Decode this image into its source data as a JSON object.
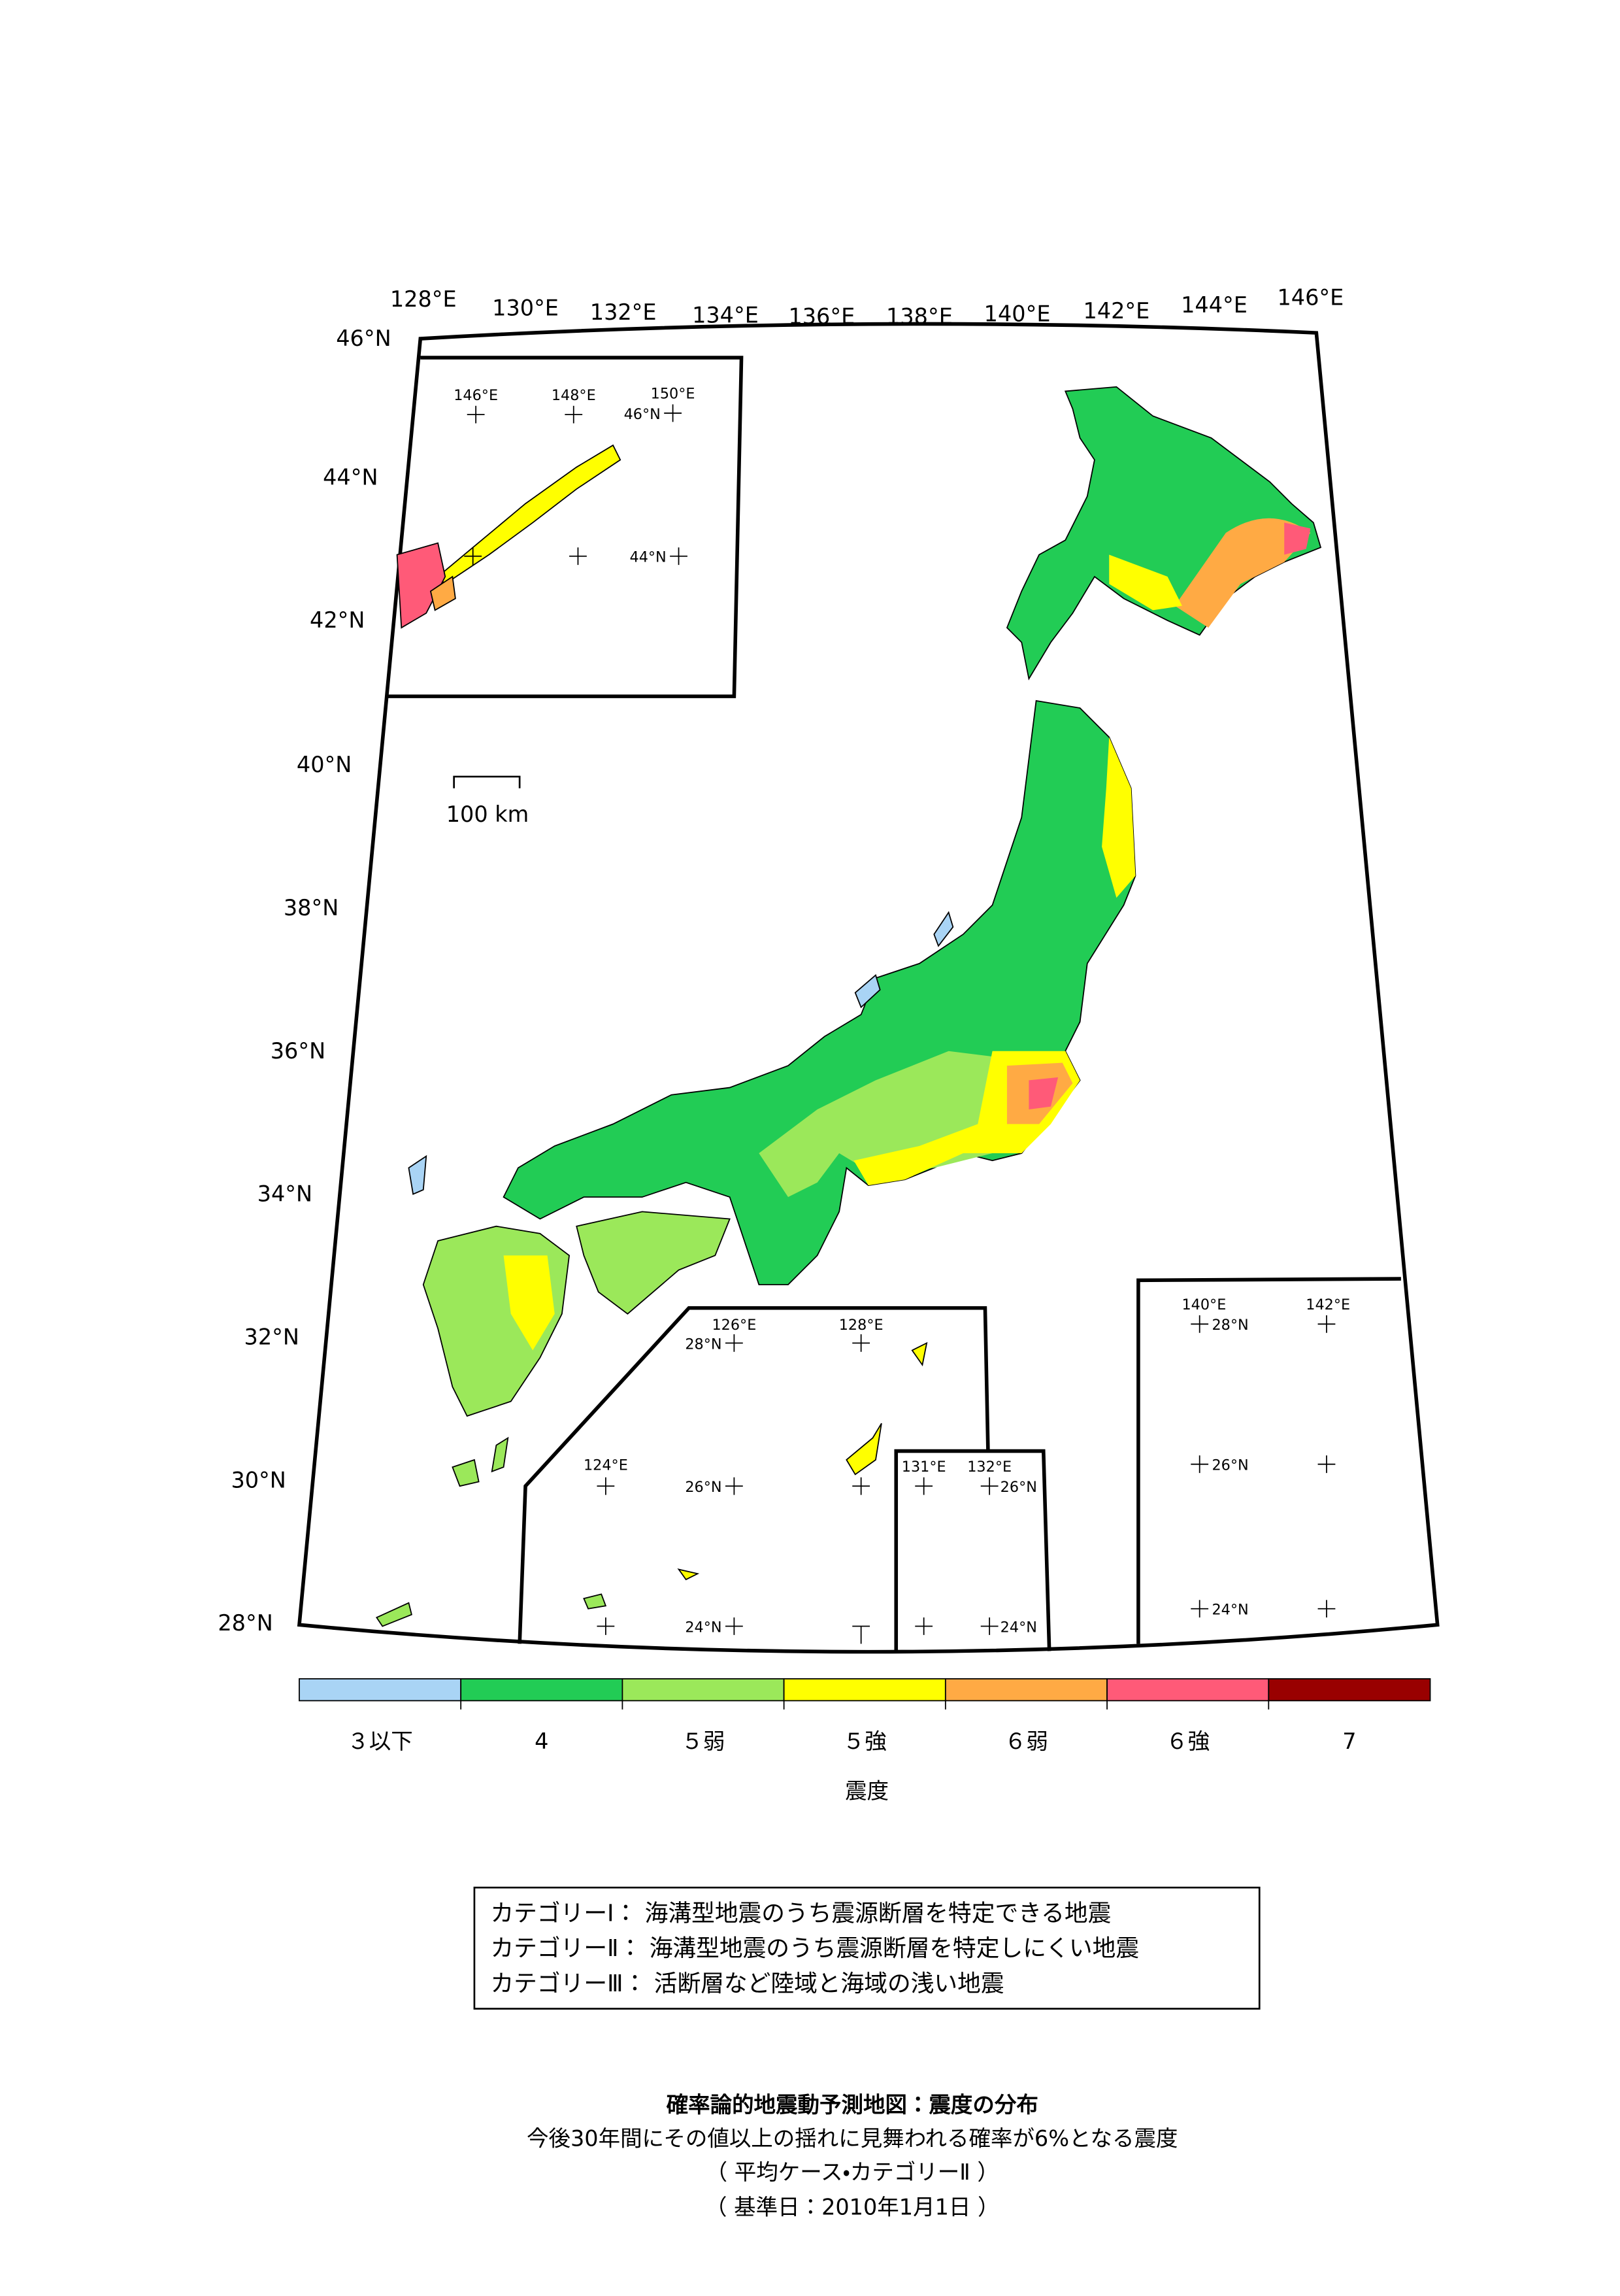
{
  "map": {
    "lon_labels": [
      "128°E",
      "130°E",
      "132°E",
      "134°E",
      "136°E",
      "138°E",
      "140°E",
      "142°E",
      "144°E",
      "146°E"
    ],
    "lat_labels": [
      "46°N",
      "44°N",
      "42°N",
      "40°N",
      "38°N",
      "36°N",
      "34°N",
      "32°N",
      "30°N",
      "28°N"
    ],
    "scale_bar": "100 km",
    "insets": [
      {
        "labels": [
          "146°E",
          "148°E",
          "150°E",
          "46°N",
          "44°N"
        ]
      },
      {
        "labels": [
          "126°E",
          "128°E",
          "28°N",
          "124°E",
          "26°N",
          "24°N"
        ]
      },
      {
        "labels": [
          "131°E",
          "132°E",
          "26°N",
          "24°N"
        ]
      },
      {
        "labels": [
          "140°E",
          "142°E",
          "28°N",
          "26°N",
          "24°N"
        ]
      }
    ]
  },
  "legend": {
    "title": "震度",
    "items": [
      {
        "label": "３以下",
        "color": "#a9d4f5"
      },
      {
        "label": "4",
        "color": "#22cc55"
      },
      {
        "label": "５弱",
        "color": "#9be85a"
      },
      {
        "label": "５強",
        "color": "#ffff00"
      },
      {
        "label": "６弱",
        "color": "#ffaa44"
      },
      {
        "label": "６強",
        "color": "#ff5a78"
      },
      {
        "label": "7",
        "color": "#990000"
      }
    ]
  },
  "categories_box": [
    "カテゴリーⅠ： 海溝型地震のうち震源断層を特定できる地震",
    "カテゴリーⅡ： 海溝型地震のうち震源断層を特定しにくい地震",
    "カテゴリーⅢ： 活断層など陸域と海域の浅い地震"
  ],
  "footer": [
    "確率論的地震動予測地図：震度の分布",
    "今後30年間にその値以上の揺れに見舞われる確率が6%となる震度",
    "（ 平均ケース・カテゴリーⅡ ）",
    "（ 基準日：2010年1月1日 ）"
  ]
}
